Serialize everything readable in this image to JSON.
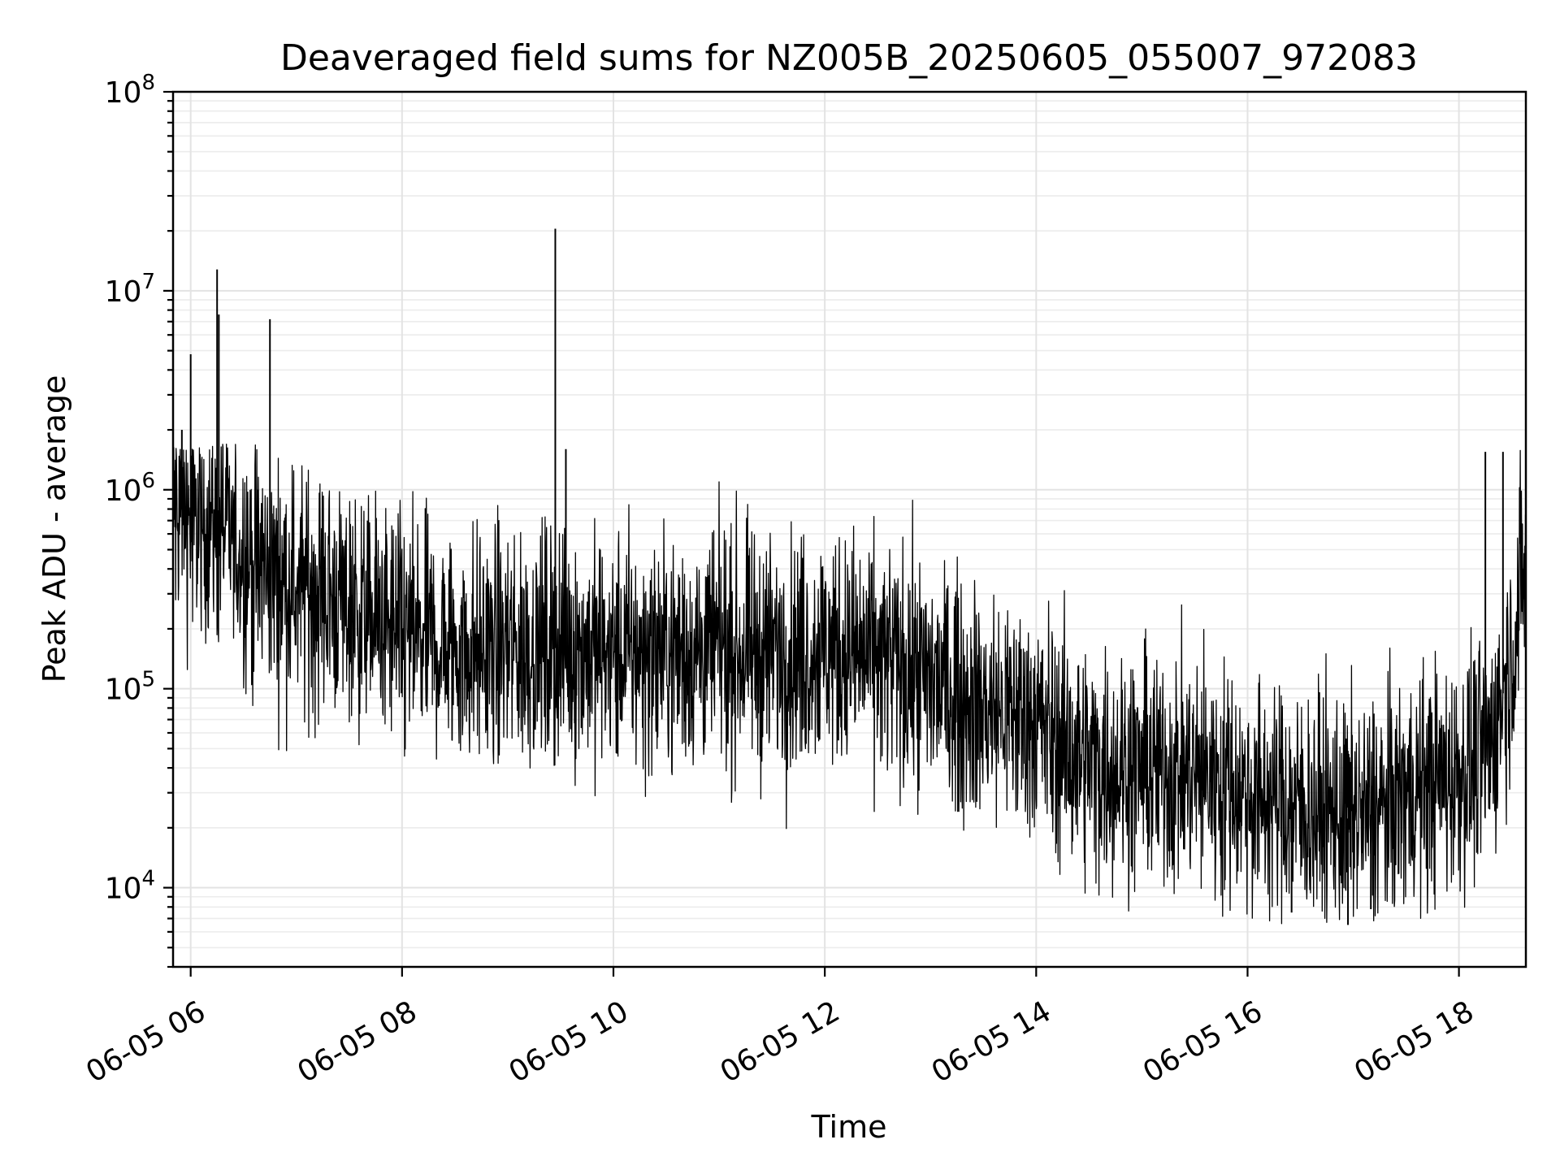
{
  "chart_data": {
    "type": "line",
    "title": "Deaveraged field sums for NZ005B_20250605_055007_972083",
    "xlabel": "Time",
    "ylabel": "Peak ADU - average",
    "yscale": "log",
    "ylim": [
      4000,
      100000000
    ],
    "xlim": [
      "2025-06-05 05:50",
      "2025-06-05 18:38"
    ],
    "grid": true,
    "x_ticks": [
      {
        "value": "2025-06-05 06:00",
        "label": "06-05 06"
      },
      {
        "value": "2025-06-05 08:00",
        "label": "06-05 08"
      },
      {
        "value": "2025-06-05 10:00",
        "label": "06-05 10"
      },
      {
        "value": "2025-06-05 12:00",
        "label": "06-05 12"
      },
      {
        "value": "2025-06-05 14:00",
        "label": "06-05 14"
      },
      {
        "value": "2025-06-05 16:00",
        "label": "06-05 16"
      },
      {
        "value": "2025-06-05 18:00",
        "label": "06-05 18"
      }
    ],
    "y_ticks": [
      {
        "value": 10000,
        "base": "10",
        "exp": "4"
      },
      {
        "value": 100000,
        "base": "10",
        "exp": "5"
      },
      {
        "value": 1000000,
        "base": "10",
        "exp": "6"
      },
      {
        "value": 10000000,
        "base": "10",
        "exp": "7"
      },
      {
        "value": 100000000,
        "base": "10",
        "exp": "8"
      }
    ],
    "color": "#000000",
    "series": [
      {
        "x": [
          "2025-06-05 05:50",
          "2025-06-05 06:00",
          "2025-06-05 06:15",
          "2025-06-05 06:30",
          "2025-06-05 06:45",
          "2025-06-05 07:00",
          "2025-06-05 07:15",
          "2025-06-05 07:30",
          "2025-06-05 07:45",
          "2025-06-05 08:00",
          "2025-06-05 08:30",
          "2025-06-05 09:00",
          "2025-06-05 09:30",
          "2025-06-05 10:00",
          "2025-06-05 10:30",
          "2025-06-05 11:00",
          "2025-06-05 11:30",
          "2025-06-05 12:00",
          "2025-06-05 12:30",
          "2025-06-05 13:00",
          "2025-06-05 13:30",
          "2025-06-05 14:00",
          "2025-06-05 14:15",
          "2025-06-05 14:30",
          "2025-06-05 15:00",
          "2025-06-05 15:30",
          "2025-06-05 16:00",
          "2025-06-05 16:30",
          "2025-06-05 17:00",
          "2025-06-05 17:15",
          "2025-06-05 17:30",
          "2025-06-05 18:00",
          "2025-06-05 18:15",
          "2025-06-05 18:20",
          "2025-06-05 18:30",
          "2025-06-05 18:38"
        ],
        "y": [
          900000,
          700000,
          650000,
          450000,
          380000,
          320000,
          300000,
          260000,
          220000,
          180000,
          160000,
          160000,
          160000,
          150000,
          150000,
          155000,
          150000,
          160000,
          140000,
          110000,
          80000,
          70000,
          50000,
          42000,
          40000,
          38000,
          30000,
          25000,
          22000,
          24000,
          30000,
          38000,
          45000,
          60000,
          150000,
          450000
        ]
      }
    ],
    "spikes": [
      {
        "x": "2025-06-05 05:55",
        "y": 2000000
      },
      {
        "x": "2025-06-05 06:00",
        "y": 4800000
      },
      {
        "x": "2025-06-05 06:15",
        "y": 12800000
      },
      {
        "x": "2025-06-05 06:16",
        "y": 7600000
      },
      {
        "x": "2025-06-05 06:45",
        "y": 7200000
      },
      {
        "x": "2025-06-05 09:27",
        "y": 20500000
      },
      {
        "x": "2025-06-05 09:33",
        "y": 1600000
      },
      {
        "x": "2025-06-05 18:15",
        "y": 1550000
      },
      {
        "x": "2025-06-05 18:25",
        "y": 1550000
      },
      {
        "x": "2025-06-05 16:57",
        "y": 6500
      },
      {
        "x": "2025-06-05 16:25",
        "y": 7500
      },
      {
        "x": "2025-06-05 17:10",
        "y": 7800
      }
    ]
  }
}
